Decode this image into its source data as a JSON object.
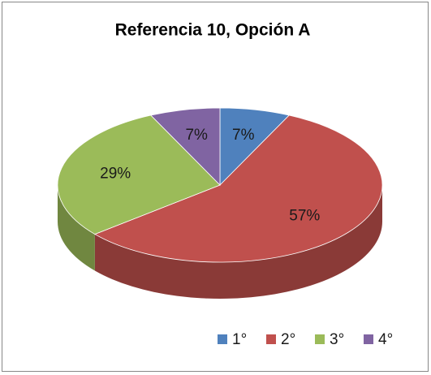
{
  "chart_data": {
    "type": "pie3d",
    "title": "Referencia 10, Opción A",
    "categories": [
      "1°",
      "2°",
      "3°",
      "4°"
    ],
    "values": [
      7,
      57,
      29,
      7
    ],
    "value_labels": [
      "7%",
      "57%",
      "29%",
      "7%"
    ],
    "colors": [
      "#4f81bd",
      "#c0504d",
      "#9bbb59",
      "#8064a2"
    ],
    "legend": "bottom"
  }
}
